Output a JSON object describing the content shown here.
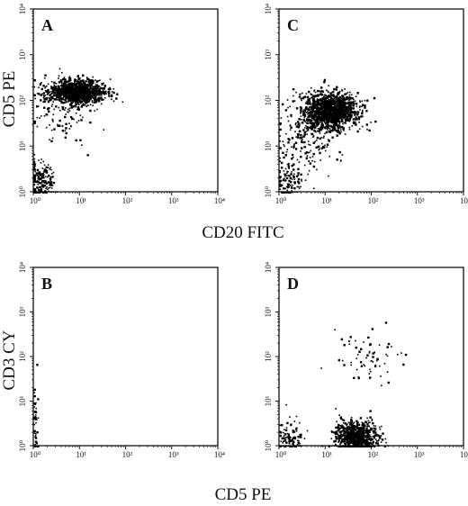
{
  "figure": {
    "x_title_top": "CD20 FITC",
    "y_title_top": "CD5 PE",
    "x_title_bottom": "CD5 PE",
    "y_title_bottom": "CD3 CY"
  },
  "chart_data": [
    {
      "type": "scatter",
      "panel": "A",
      "x_scale": "log",
      "y_scale": "log",
      "xlim": [
        1,
        10000
      ],
      "ylim": [
        1,
        10000
      ],
      "x_ticks": [
        "10⁰",
        "10¹",
        "10²",
        "10³",
        "10⁴"
      ],
      "y_ticks": [
        "10⁰",
        "10¹",
        "10²",
        "10³",
        "10⁴"
      ],
      "clusters": [
        {
          "center": [
            8,
            160
          ],
          "spread": [
            0.32,
            0.13
          ],
          "count": 1100
        },
        {
          "center": [
            4,
            70
          ],
          "spread": [
            0.3,
            0.35
          ],
          "count": 110
        },
        {
          "center": [
            1.4,
            1.6
          ],
          "spread": [
            0.15,
            0.25
          ],
          "count": 170
        }
      ]
    },
    {
      "type": "scatter",
      "panel": "C",
      "x_scale": "log",
      "y_scale": "log",
      "xlim": [
        1,
        10000
      ],
      "ylim": [
        1,
        10000
      ],
      "x_ticks": [
        "10⁰",
        "10¹",
        "10²",
        "10³",
        "10⁴"
      ],
      "y_ticks": [
        "10⁰",
        "10¹",
        "10²",
        "10³",
        "10⁴"
      ],
      "clusters": [
        {
          "center": [
            12,
            60
          ],
          "spread": [
            0.3,
            0.2
          ],
          "count": 1400
        },
        {
          "center": [
            3.5,
            12
          ],
          "spread": [
            0.3,
            0.35
          ],
          "count": 180
        },
        {
          "center": [
            1.5,
            1.6
          ],
          "spread": [
            0.15,
            0.2
          ],
          "count": 90
        }
      ]
    },
    {
      "type": "scatter",
      "panel": "B",
      "x_scale": "log",
      "y_scale": "log",
      "xlim": [
        1,
        10000
      ],
      "ylim": [
        1,
        10000
      ],
      "x_ticks": [
        "10⁰",
        "10¹",
        "10²",
        "10³",
        "10⁴"
      ],
      "y_ticks": [
        "10⁰",
        "10¹",
        "10²",
        "10³",
        "10⁴"
      ],
      "clusters": [
        {
          "center": [
            1.05,
            3
          ],
          "spread": [
            0.03,
            0.45
          ],
          "count": 40
        }
      ]
    },
    {
      "type": "scatter",
      "panel": "D",
      "x_scale": "log",
      "y_scale": "log",
      "xlim": [
        1,
        10000
      ],
      "ylim": [
        1,
        10000
      ],
      "x_ticks": [
        "10⁰",
        "10¹",
        "10²",
        "10³",
        "10⁴"
      ],
      "y_ticks": [
        "10⁰",
        "10¹",
        "10²",
        "10³",
        "10⁴"
      ],
      "clusters": [
        {
          "center": [
            45,
            1.6
          ],
          "spread": [
            0.22,
            0.18
          ],
          "count": 800
        },
        {
          "center": [
            1.7,
            1.5
          ],
          "spread": [
            0.15,
            0.2
          ],
          "count": 110
        },
        {
          "center": [
            80,
            100
          ],
          "spread": [
            0.35,
            0.28
          ],
          "count": 70
        }
      ]
    }
  ]
}
